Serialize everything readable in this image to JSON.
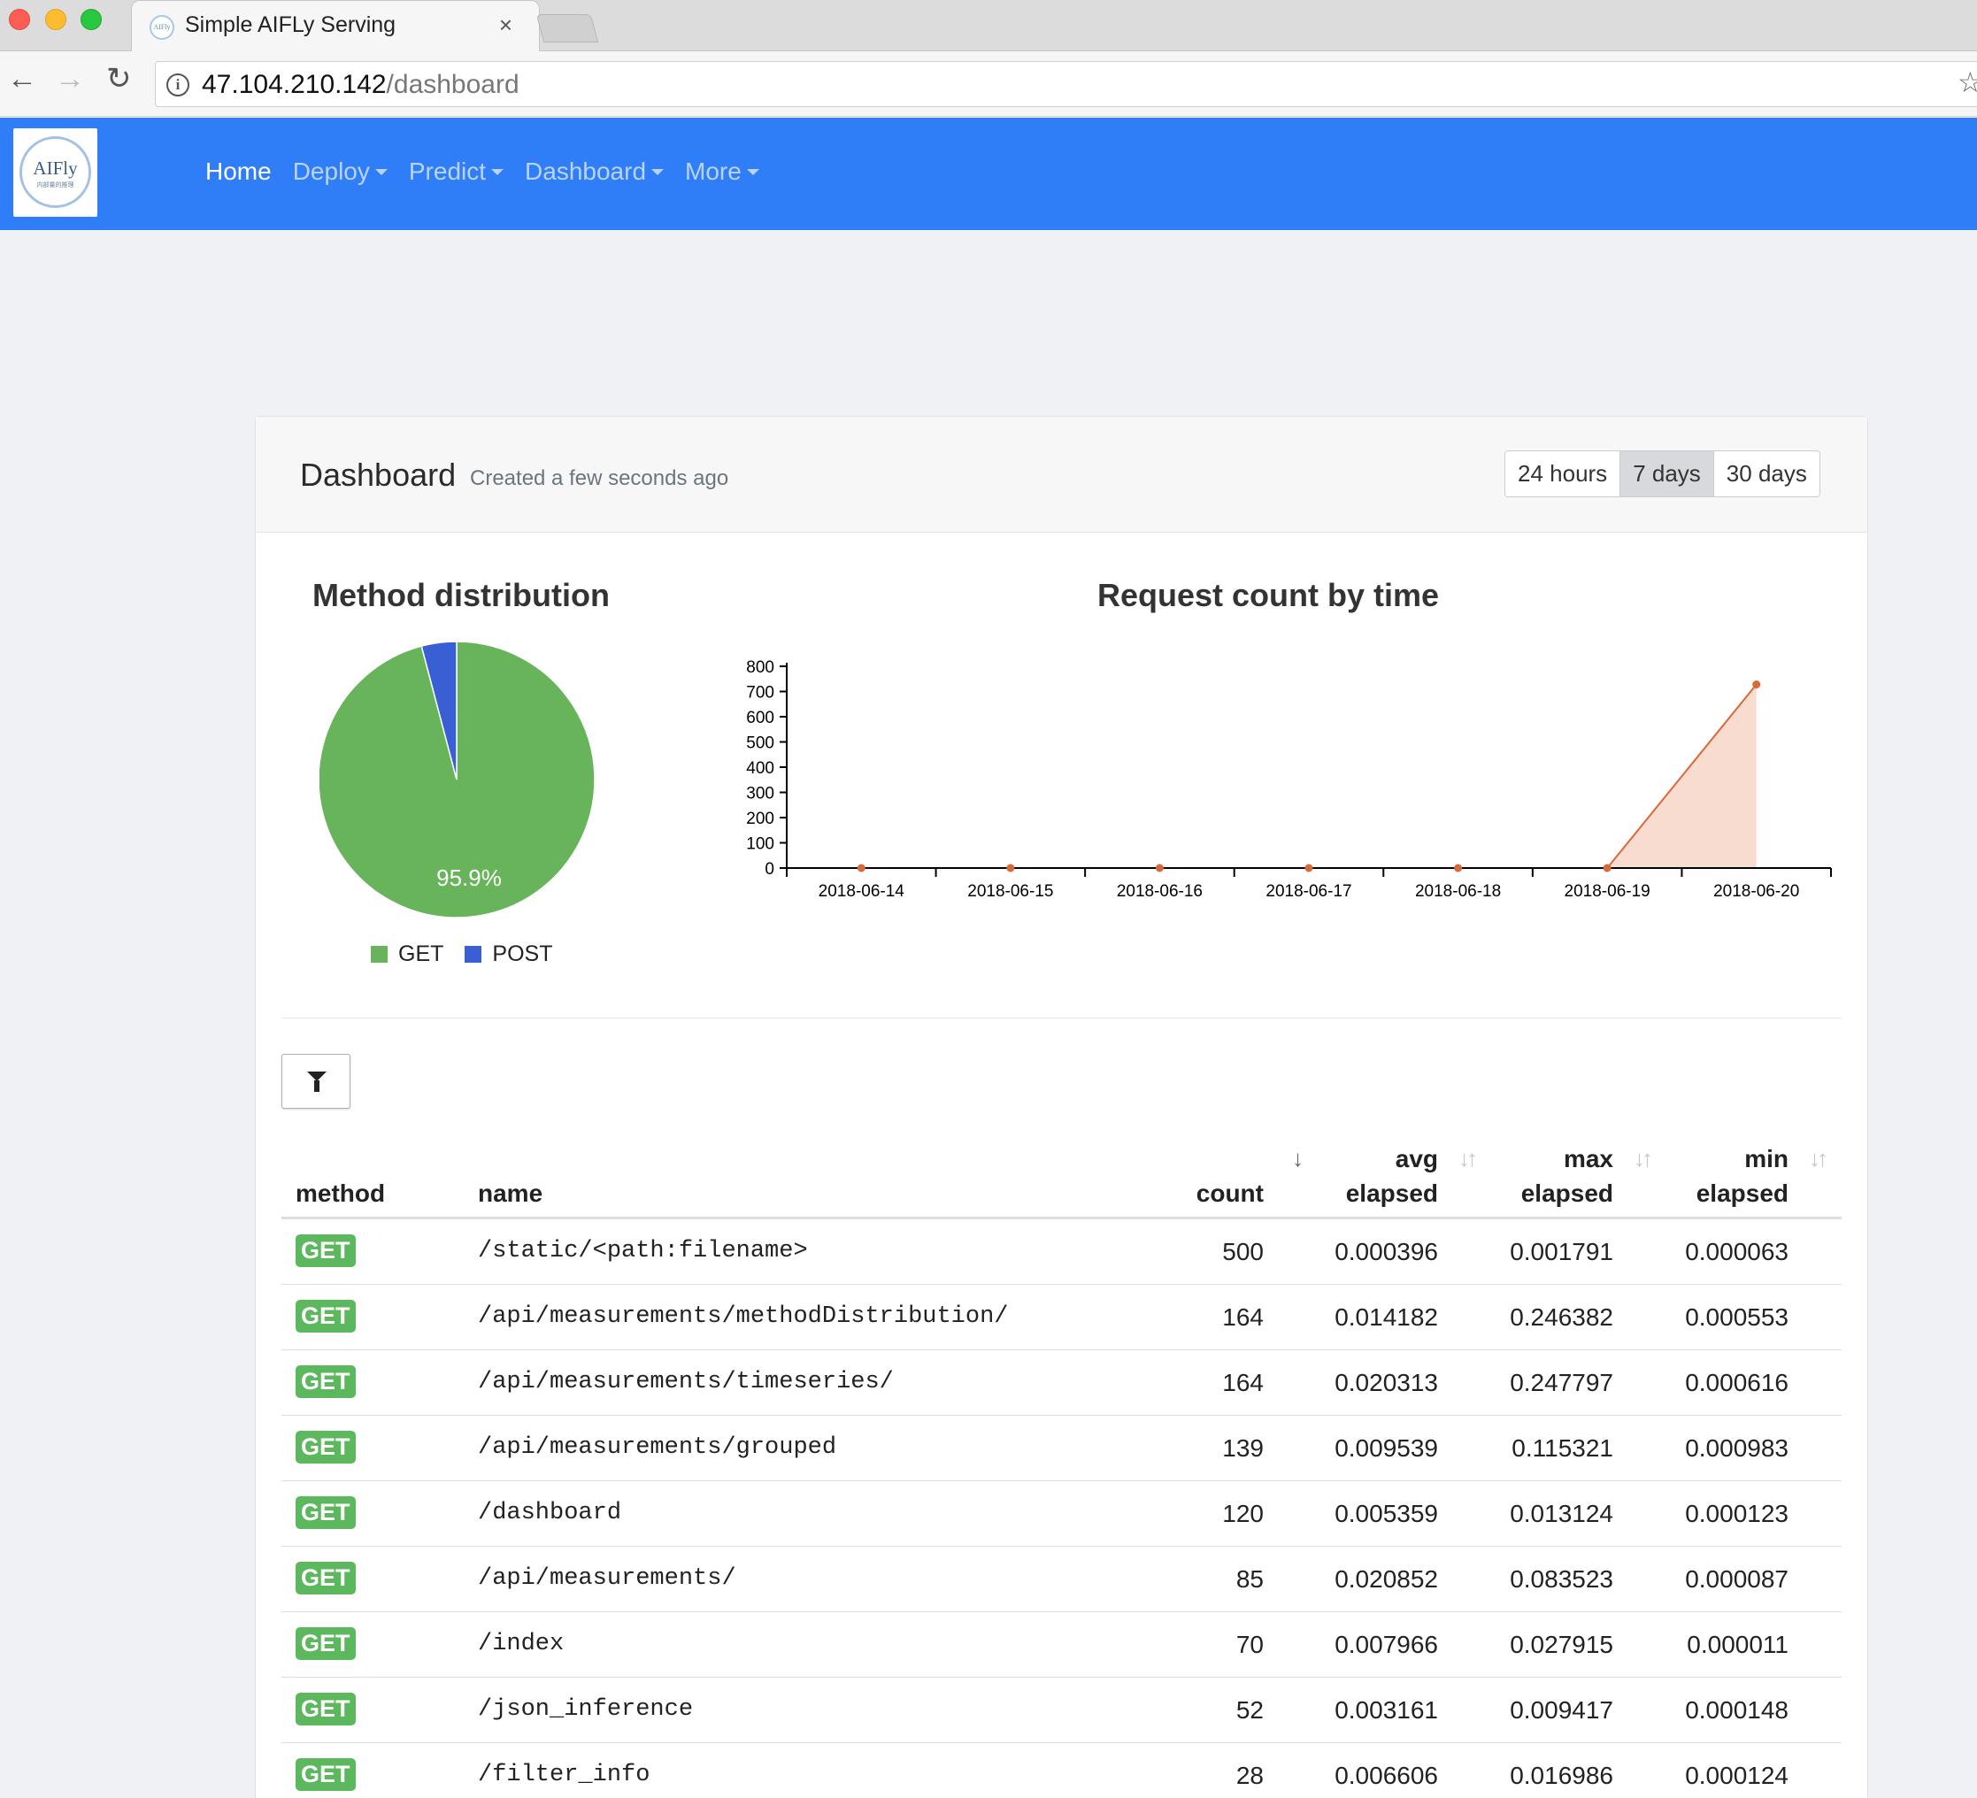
{
  "browser": {
    "tab_title": "Simple AIFLy Serving",
    "tab_close": "×",
    "favicon_text": "AIFly",
    "url_host": "47.104.210.142",
    "url_path": "/dashboard",
    "back_icon": "←",
    "forward_icon": "→",
    "reload_icon": "↻",
    "info_icon": "i",
    "star_icon": "☆"
  },
  "navbar": {
    "logo_text": "AIFly",
    "logo_sub": "内部量的推理",
    "links": [
      {
        "label": "Home",
        "active": true
      },
      {
        "label": "Deploy",
        "active": false
      },
      {
        "label": "Predict",
        "active": false
      },
      {
        "label": "Dashboard",
        "active": false
      },
      {
        "label": "More",
        "active": false
      }
    ],
    "bg_color": "#307ef7"
  },
  "dashboard": {
    "title": "Dashboard",
    "subtitle": "Created a few seconds ago",
    "ranges": [
      {
        "label": "24 hours",
        "active": false
      },
      {
        "label": "7 days",
        "active": true
      },
      {
        "label": "30 days",
        "active": false
      }
    ]
  },
  "chart_data": [
    {
      "type": "pie",
      "title": "Method distribution",
      "categories": [
        "GET",
        "POST"
      ],
      "values": [
        95.9,
        4.1
      ],
      "colors": [
        "#67b45a",
        "#3a5fd4"
      ],
      "data_label": "95.9%",
      "legend": "bottom"
    },
    {
      "type": "area",
      "title": "Request count by time",
      "categories": [
        "2018-06-14",
        "2018-06-15",
        "2018-06-16",
        "2018-06-17",
        "2018-06-18",
        "2018-06-19",
        "2018-06-20"
      ],
      "values": [
        0,
        0,
        0,
        0,
        0,
        0,
        728
      ],
      "ylim": [
        0,
        800
      ],
      "yticks": [
        "0",
        "100",
        "200",
        "300",
        "400",
        "500",
        "600",
        "700",
        "800"
      ],
      "line_color": "#d9683a",
      "fill_color": "#f8dccf",
      "grid": false
    }
  ],
  "table": {
    "headers": {
      "method": "method",
      "name": "name",
      "count": "count",
      "avg_top": "avg",
      "avg_bottom": "elapsed",
      "max_top": "max",
      "max_bottom": "elapsed",
      "min_top": "min",
      "min_bottom": "elapsed"
    },
    "sort_active_icon": "↓",
    "sort_icon": "↓↑",
    "badge_color": "#5cb85c",
    "rows": [
      {
        "method": "GET",
        "name": "/static/<path:filename>",
        "count": "500",
        "avg": "0.000396",
        "max": "0.001791",
        "min": "0.000063"
      },
      {
        "method": "GET",
        "name": "/api/measurements/methodDistribution/",
        "count": "164",
        "avg": "0.014182",
        "max": "0.246382",
        "min": "0.000553"
      },
      {
        "method": "GET",
        "name": "/api/measurements/timeseries/",
        "count": "164",
        "avg": "0.020313",
        "max": "0.247797",
        "min": "0.000616"
      },
      {
        "method": "GET",
        "name": "/api/measurements/grouped",
        "count": "139",
        "avg": "0.009539",
        "max": "0.115321",
        "min": "0.000983"
      },
      {
        "method": "GET",
        "name": "/dashboard",
        "count": "120",
        "avg": "0.005359",
        "max": "0.013124",
        "min": "0.000123"
      },
      {
        "method": "GET",
        "name": "/api/measurements/",
        "count": "85",
        "avg": "0.020852",
        "max": "0.083523",
        "min": "0.000087"
      },
      {
        "method": "GET",
        "name": "/index",
        "count": "70",
        "avg": "0.007966",
        "max": "0.027915",
        "min": "0.000011"
      },
      {
        "method": "GET",
        "name": "/json_inference",
        "count": "52",
        "avg": "0.003161",
        "max": "0.009417",
        "min": "0.000148"
      },
      {
        "method": "GET",
        "name": "/filter_info",
        "count": "28",
        "avg": "0.006606",
        "max": "0.016986",
        "min": "0.000124"
      }
    ]
  }
}
